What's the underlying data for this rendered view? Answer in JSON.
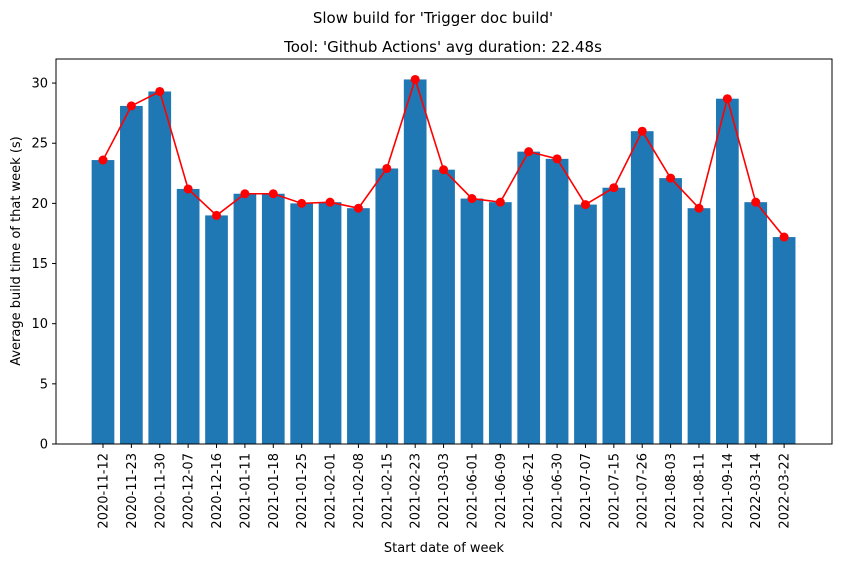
{
  "chart_data": {
    "type": "bar",
    "suptitle": "Slow build for 'Trigger doc build'",
    "title": "Tool: 'Github Actions' avg duration: 22.48s",
    "xlabel": "Start date of week",
    "ylabel": "Average build time of that week (s)",
    "ylim": [
      0,
      32
    ],
    "yticks": [
      0,
      5,
      10,
      15,
      20,
      25,
      30
    ],
    "grid": false,
    "categories": [
      "2020-11-12",
      "2020-11-23",
      "2020-11-30",
      "2020-12-07",
      "2020-12-16",
      "2021-01-11",
      "2021-01-18",
      "2021-01-25",
      "2021-02-01",
      "2021-02-08",
      "2021-02-15",
      "2021-02-23",
      "2021-03-03",
      "2021-06-01",
      "2021-06-09",
      "2021-06-21",
      "2021-06-30",
      "2021-07-07",
      "2021-07-15",
      "2021-07-26",
      "2021-08-03",
      "2021-08-11",
      "2021-09-14",
      "2022-03-14",
      "2022-03-22"
    ],
    "series": [
      {
        "type": "bar",
        "color": "#1f77b4",
        "values": [
          23.6,
          28.1,
          29.3,
          21.2,
          19.0,
          20.8,
          20.8,
          20.0,
          20.1,
          19.6,
          22.9,
          30.3,
          22.8,
          20.4,
          20.1,
          24.3,
          23.7,
          19.9,
          21.3,
          26.0,
          22.1,
          19.6,
          28.7,
          20.1,
          17.2
        ]
      },
      {
        "type": "line",
        "color": "#ff0000",
        "marker": "circle",
        "values": [
          23.6,
          28.1,
          29.3,
          21.2,
          19.0,
          20.8,
          20.8,
          20.0,
          20.1,
          19.6,
          22.9,
          30.3,
          22.8,
          20.4,
          20.1,
          24.3,
          23.7,
          19.9,
          21.3,
          26.0,
          22.1,
          19.6,
          28.7,
          20.1,
          17.2
        ]
      }
    ]
  }
}
